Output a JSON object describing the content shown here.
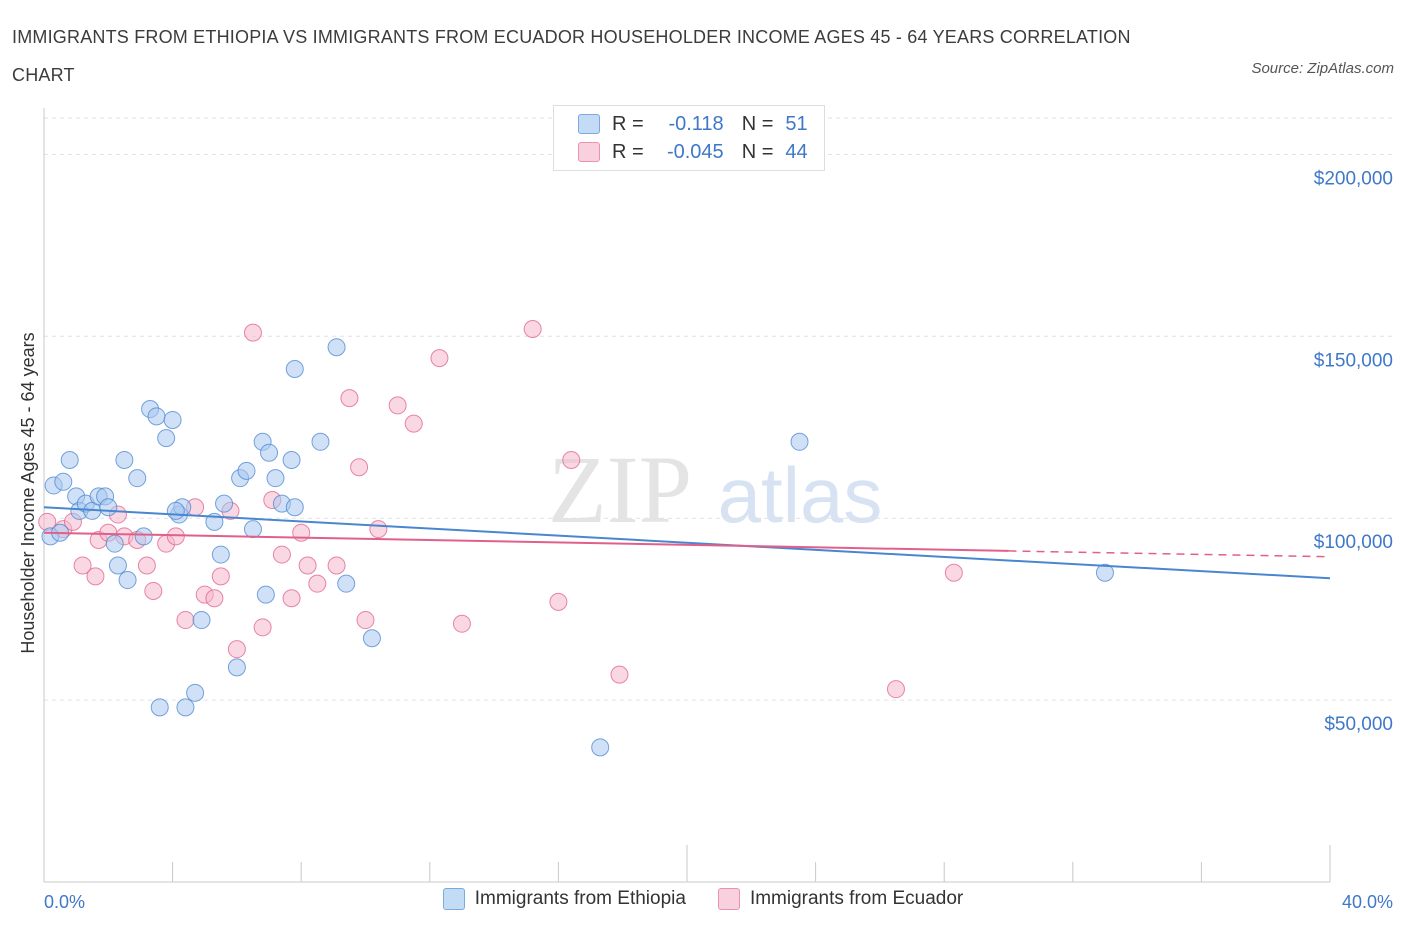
{
  "title": "IMMIGRANTS FROM ETHIOPIA VS IMMIGRANTS FROM ECUADOR HOUSEHOLDER INCOME AGES 45 - 64 YEARS CORRELATION CHART",
  "source": "Source: ZipAtlas.com",
  "watermark": {
    "zip": "ZIP",
    "atlas": "atlas"
  },
  "legend_stats": {
    "r_label": "R =",
    "n_label": "N =",
    "rows": [
      {
        "r": "-0.118",
        "n": "51",
        "color": "#a9c9f0"
      },
      {
        "r": "-0.045",
        "n": "44",
        "color": "#f5b8cc"
      }
    ]
  },
  "chart_data": {
    "type": "scatter",
    "title": "IMMIGRANTS FROM ETHIOPIA VS IMMIGRANTS FROM ECUADOR HOUSEHOLDER INCOME AGES 45 - 64 YEARS CORRELATION CHART",
    "xlabel": "",
    "ylabel": "Householder Income Ages 45 - 64 years",
    "xlim": [
      0,
      40
    ],
    "ylim": [
      0,
      210000
    ],
    "x_tick_labels": {
      "left": "0.0%",
      "right": "40.0%"
    },
    "y_ticks": [
      {
        "value": 50000,
        "label": "$50,000"
      },
      {
        "value": 100000,
        "label": "$100,000"
      },
      {
        "value": 150000,
        "label": "$150,000"
      },
      {
        "value": 200000,
        "label": "$200,000"
      }
    ],
    "grid": true,
    "series": [
      {
        "name": "Immigrants from Ethiopia",
        "color": "#4a86d0",
        "fill": "#a9c9f0",
        "R": -0.118,
        "N": 51,
        "trend": {
          "x": [
            0,
            40
          ],
          "y": [
            103000,
            83500
          ]
        },
        "points": [
          [
            0.2,
            95000
          ],
          [
            0.5,
            96000
          ],
          [
            0.3,
            109000
          ],
          [
            0.6,
            110000
          ],
          [
            0.8,
            116000
          ],
          [
            1.0,
            106000
          ],
          [
            1.1,
            102000
          ],
          [
            1.3,
            104000
          ],
          [
            1.5,
            102000
          ],
          [
            1.7,
            106000
          ],
          [
            1.9,
            106000
          ],
          [
            2.2,
            93000
          ],
          [
            2.3,
            87000
          ],
          [
            2.6,
            83000
          ],
          [
            2.9,
            111000
          ],
          [
            2.5,
            116000
          ],
          [
            3.1,
            95000
          ],
          [
            3.3,
            130000
          ],
          [
            3.5,
            128000
          ],
          [
            3.8,
            122000
          ],
          [
            4.0,
            127000
          ],
          [
            4.2,
            101000
          ],
          [
            4.3,
            103000
          ],
          [
            4.9,
            72000
          ],
          [
            4.4,
            48000
          ],
          [
            5.3,
            99000
          ],
          [
            5.5,
            90000
          ],
          [
            5.6,
            104000
          ],
          [
            3.6,
            48000
          ],
          [
            4.7,
            52000
          ],
          [
            6.0,
            59000
          ],
          [
            6.1,
            111000
          ],
          [
            6.5,
            97000
          ],
          [
            6.8,
            121000
          ],
          [
            7.0,
            118000
          ],
          [
            6.9,
            79000
          ],
          [
            6.3,
            113000
          ],
          [
            7.2,
            111000
          ],
          [
            7.4,
            104000
          ],
          [
            7.7,
            116000
          ],
          [
            7.8,
            103000
          ],
          [
            7.8,
            141000
          ],
          [
            8.6,
            121000
          ],
          [
            9.1,
            147000
          ],
          [
            9.4,
            82000
          ],
          [
            10.2,
            67000
          ],
          [
            17.3,
            37000
          ],
          [
            23.5,
            121000
          ],
          [
            33.0,
            85000
          ],
          [
            4.1,
            102000
          ],
          [
            2.0,
            103000
          ]
        ]
      },
      {
        "name": "Immigrants from Ecuador",
        "color": "#e0608a",
        "fill": "#f5b8cc",
        "R": -0.045,
        "N": 44,
        "trend": {
          "x": [
            0,
            30
          ],
          "y": [
            96000,
            91000
          ]
        },
        "trend_dashed": {
          "x": [
            30,
            40
          ],
          "y": [
            91000,
            89400
          ]
        },
        "points": [
          [
            0.1,
            99000
          ],
          [
            0.6,
            97000
          ],
          [
            0.9,
            99000
          ],
          [
            1.2,
            87000
          ],
          [
            1.6,
            84000
          ],
          [
            1.7,
            94000
          ],
          [
            2.0,
            96000
          ],
          [
            2.3,
            101000
          ],
          [
            2.5,
            95000
          ],
          [
            2.9,
            94000
          ],
          [
            3.2,
            87000
          ],
          [
            3.4,
            80000
          ],
          [
            3.8,
            93000
          ],
          [
            4.1,
            95000
          ],
          [
            4.4,
            72000
          ],
          [
            4.7,
            103000
          ],
          [
            5.0,
            79000
          ],
          [
            5.3,
            78000
          ],
          [
            5.5,
            84000
          ],
          [
            5.8,
            102000
          ],
          [
            6.0,
            64000
          ],
          [
            6.5,
            151000
          ],
          [
            6.8,
            70000
          ],
          [
            7.1,
            105000
          ],
          [
            7.4,
            90000
          ],
          [
            7.7,
            78000
          ],
          [
            8.0,
            96000
          ],
          [
            8.2,
            87000
          ],
          [
            8.5,
            82000
          ],
          [
            9.1,
            87000
          ],
          [
            9.5,
            133000
          ],
          [
            9.8,
            114000
          ],
          [
            10.0,
            72000
          ],
          [
            10.4,
            97000
          ],
          [
            11.0,
            131000
          ],
          [
            11.5,
            126000
          ],
          [
            12.3,
            144000
          ],
          [
            13.0,
            71000
          ],
          [
            15.2,
            152000
          ],
          [
            16.0,
            77000
          ],
          [
            16.4,
            116000
          ],
          [
            17.9,
            57000
          ],
          [
            26.5,
            53000
          ],
          [
            28.3,
            85000
          ]
        ]
      }
    ]
  }
}
